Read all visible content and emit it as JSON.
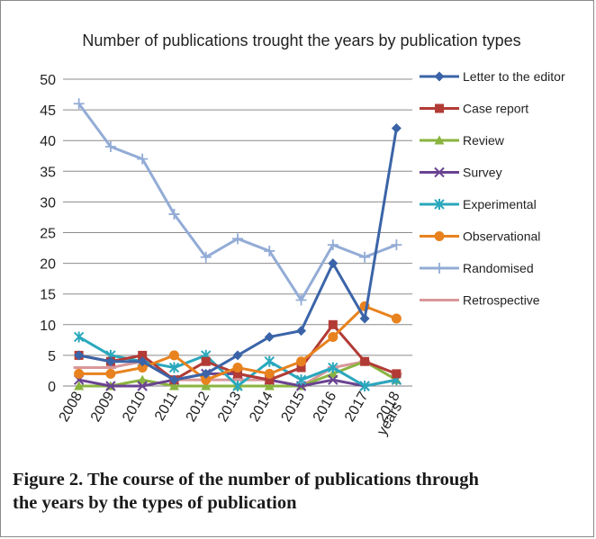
{
  "figure": {
    "caption_line1": "Figure 2. The course of the number of publications through",
    "caption_line2": "the years by the types of publication"
  },
  "chart_data": {
    "type": "line",
    "title": "Number of publications trought the years by publication types",
    "xlabel": "years",
    "ylabel": "",
    "x": [
      "2008",
      "2009",
      "2010",
      "2011",
      "2012",
      "2013",
      "2014",
      "2015",
      "2016",
      "2017",
      "2018"
    ],
    "ylim": [
      0,
      50
    ],
    "yticks": [
      0,
      5,
      10,
      15,
      20,
      25,
      30,
      35,
      40,
      45,
      50
    ],
    "grid": true,
    "legend_position": "right",
    "series": [
      {
        "name": "Letter to the editor",
        "color": "#3b64a8",
        "marker": "diamond",
        "values": [
          5,
          4,
          4,
          1,
          2,
          5,
          8,
          9,
          20,
          11,
          42
        ]
      },
      {
        "name": "Case report",
        "color": "#b23b36",
        "marker": "square",
        "values": [
          5,
          4,
          5,
          1,
          4,
          2,
          1,
          3,
          10,
          4,
          2
        ]
      },
      {
        "name": "Review",
        "color": "#8ab43f",
        "marker": "triangle",
        "values": [
          0,
          0,
          1,
          0,
          0,
          0,
          0,
          0,
          2,
          4,
          1
        ]
      },
      {
        "name": "Survey",
        "color": "#6a4391",
        "marker": "x",
        "values": [
          1,
          0,
          0,
          1,
          2,
          2,
          1,
          0,
          1,
          0,
          1
        ]
      },
      {
        "name": "Experimental",
        "color": "#2aa8bd",
        "marker": "asterisk",
        "values": [
          8,
          5,
          4,
          3,
          5,
          0,
          4,
          1,
          3,
          0,
          1
        ]
      },
      {
        "name": "Observational",
        "color": "#e8821e",
        "marker": "circle",
        "values": [
          2,
          2,
          3,
          5,
          1,
          3,
          2,
          4,
          8,
          13,
          11
        ]
      },
      {
        "name": "Randomised",
        "color": "#93acd6",
        "marker": "plus",
        "values": [
          46,
          39,
          37,
          28,
          21,
          24,
          22,
          14,
          23,
          21,
          23
        ]
      },
      {
        "name": "Retrospective",
        "color": "#d9979a",
        "marker": "dash",
        "values": [
          3,
          3,
          4,
          1,
          1,
          1,
          1,
          0,
          3,
          4,
          2
        ]
      }
    ]
  }
}
